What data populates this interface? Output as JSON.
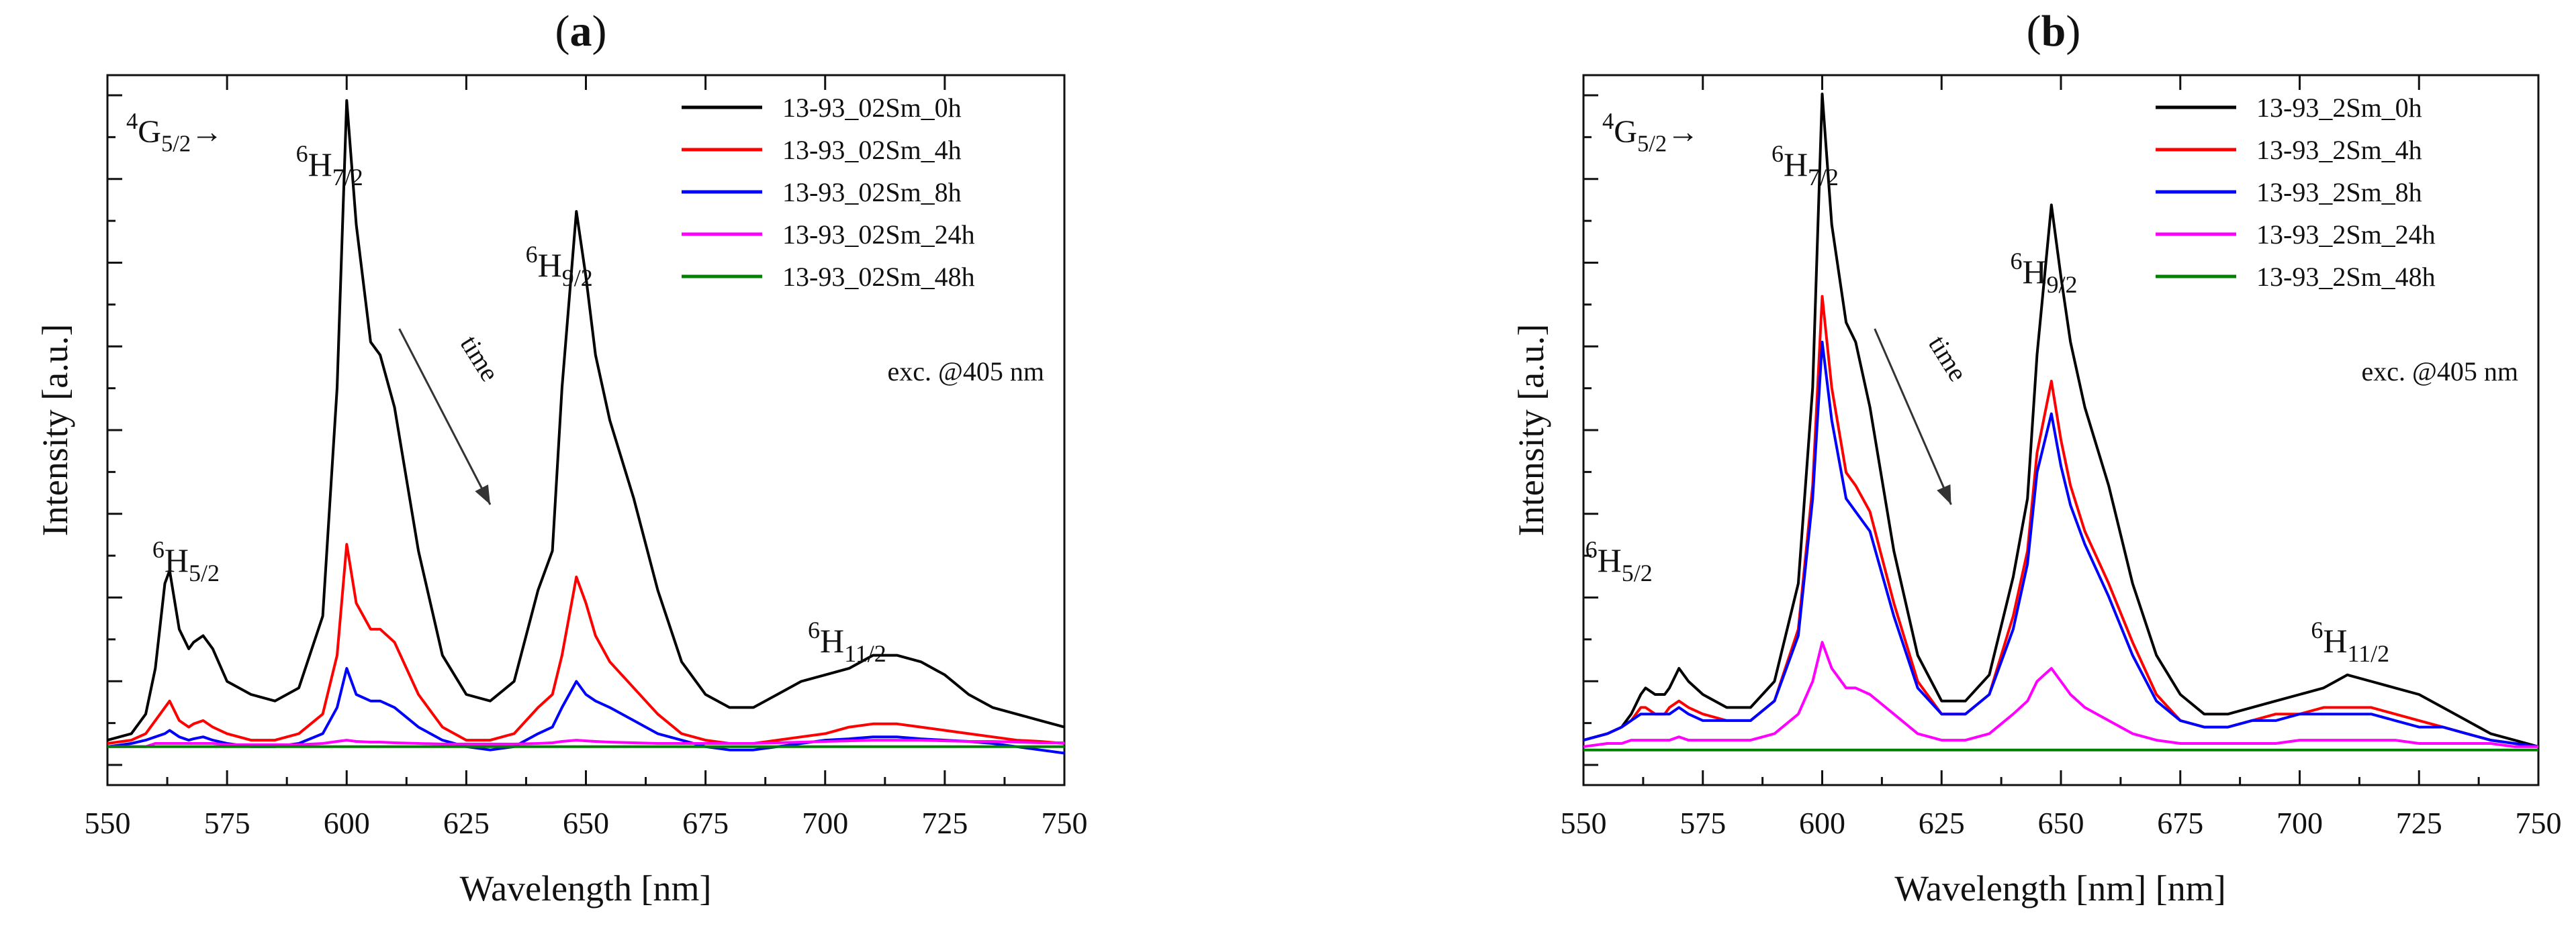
{
  "panels": [
    {
      "panel_label": "a",
      "transition_prefix": "→",
      "transition_prefix_parts": {
        "sup": "4",
        "main": "G",
        "sub": "5/2"
      },
      "arrow_label": "time",
      "excitation_note": "exc. @405 nm",
      "peak_labels": [
        {
          "sup": "6",
          "main": "H",
          "sub": "5/2"
        },
        {
          "sup": "6",
          "main": "H",
          "sub": "7/2"
        },
        {
          "sup": "6",
          "main": "H",
          "sub": "9/2"
        },
        {
          "sup": "6",
          "main": "H",
          "sub": "11/2"
        }
      ]
    },
    {
      "panel_label": "b",
      "transition_prefix": "→",
      "transition_prefix_parts": {
        "sup": "4",
        "main": "G",
        "sub": "5/2"
      },
      "arrow_label": "time",
      "excitation_note": "exc. @405 nm",
      "peak_labels": [
        {
          "sup": "6",
          "main": "H",
          "sub": "5/2"
        },
        {
          "sup": "6",
          "main": "H",
          "sub": "7/2"
        },
        {
          "sup": "6",
          "main": "H",
          "sub": "9/2"
        },
        {
          "sup": "6",
          "main": "H",
          "sub": "11/2"
        }
      ]
    }
  ],
  "chart_data": [
    {
      "type": "line",
      "title": "(a)",
      "xlabel": "Wavelength [nm]",
      "ylabel": "Intensity [a.u.]",
      "xlim": [
        550,
        750
      ],
      "ylim": [
        0,
        1.0
      ],
      "x_ticks": [
        "550",
        "575",
        "600",
        "625",
        "650",
        "675",
        "700",
        "725",
        "750"
      ],
      "y_tick_labels": false,
      "legend_position": "top-right",
      "x": [
        550,
        555,
        558,
        560,
        562,
        563,
        565,
        567,
        568,
        570,
        572,
        575,
        580,
        585,
        590,
        595,
        598,
        600,
        602,
        605,
        607,
        610,
        615,
        620,
        625,
        630,
        635,
        640,
        643,
        645,
        648,
        650,
        652,
        655,
        660,
        665,
        670,
        675,
        680,
        685,
        690,
        695,
        700,
        705,
        710,
        715,
        720,
        725,
        730,
        735,
        740,
        745,
        750
      ],
      "series": [
        {
          "name": "13-93_02Sm_0h",
          "color": "#000000",
          "values": [
            0.01,
            0.02,
            0.05,
            0.12,
            0.25,
            0.27,
            0.18,
            0.15,
            0.16,
            0.17,
            0.15,
            0.1,
            0.08,
            0.07,
            0.09,
            0.2,
            0.55,
            0.99,
            0.8,
            0.62,
            0.6,
            0.52,
            0.3,
            0.14,
            0.08,
            0.07,
            0.1,
            0.24,
            0.3,
            0.55,
            0.82,
            0.72,
            0.6,
            0.5,
            0.38,
            0.24,
            0.13,
            0.08,
            0.06,
            0.06,
            0.08,
            0.1,
            0.11,
            0.12,
            0.14,
            0.14,
            0.13,
            0.11,
            0.08,
            0.06,
            0.05,
            0.04,
            0.03
          ]
        },
        {
          "name": "13-93_02Sm_4h",
          "color": "#ff0000",
          "values": [
            0.005,
            0.01,
            0.02,
            0.04,
            0.06,
            0.07,
            0.04,
            0.03,
            0.035,
            0.04,
            0.03,
            0.02,
            0.01,
            0.01,
            0.02,
            0.05,
            0.14,
            0.31,
            0.22,
            0.18,
            0.18,
            0.16,
            0.08,
            0.03,
            0.01,
            0.01,
            0.02,
            0.06,
            0.08,
            0.14,
            0.26,
            0.22,
            0.17,
            0.13,
            0.09,
            0.05,
            0.02,
            0.01,
            0.005,
            0.005,
            0.01,
            0.015,
            0.02,
            0.03,
            0.035,
            0.035,
            0.03,
            0.025,
            0.02,
            0.015,
            0.01,
            0.008,
            0.005
          ]
        },
        {
          "name": "13-93_02Sm_8h",
          "color": "#0000ff",
          "values": [
            0.0,
            0.005,
            0.01,
            0.015,
            0.02,
            0.025,
            0.015,
            0.01,
            0.012,
            0.015,
            0.01,
            0.005,
            0.0,
            0.0,
            0.005,
            0.02,
            0.06,
            0.12,
            0.08,
            0.07,
            0.07,
            0.06,
            0.03,
            0.01,
            0.0,
            -0.005,
            0.0,
            0.02,
            0.03,
            0.06,
            0.1,
            0.08,
            0.07,
            0.06,
            0.04,
            0.02,
            0.01,
            0.0,
            -0.005,
            -0.005,
            0.0,
            0.005,
            0.01,
            0.012,
            0.015,
            0.015,
            0.012,
            0.01,
            0.008,
            0.005,
            0.0,
            -0.005,
            -0.01
          ]
        },
        {
          "name": "13-93_02Sm_24h",
          "color": "#ff00ff",
          "values": [
            0.0,
            0.0,
            0.0,
            0.005,
            0.005,
            0.005,
            0.005,
            0.005,
            0.005,
            0.005,
            0.005,
            0.003,
            0.003,
            0.003,
            0.003,
            0.005,
            0.008,
            0.01,
            0.008,
            0.007,
            0.007,
            0.006,
            0.005,
            0.004,
            0.004,
            0.004,
            0.004,
            0.005,
            0.006,
            0.008,
            0.01,
            0.009,
            0.008,
            0.007,
            0.006,
            0.005,
            0.005,
            0.005,
            0.005,
            0.005,
            0.006,
            0.007,
            0.008,
            0.009,
            0.01,
            0.01,
            0.01,
            0.009,
            0.008,
            0.008,
            0.007,
            0.006,
            0.006
          ]
        },
        {
          "name": "13-93_02Sm_48h",
          "color": "#008000",
          "values": [
            0.0,
            0.0,
            0.0,
            0.0,
            0.0,
            0.0,
            0.0,
            0.0,
            0.0,
            0.0,
            0.0,
            0.0,
            0.0,
            0.0,
            0.0,
            0.0,
            0.0,
            0.0,
            0.0,
            0.0,
            0.0,
            0.0,
            0.0,
            0.0,
            0.0,
            0.0,
            0.0,
            0.0,
            0.0,
            0.0,
            0.0,
            0.0,
            0.0,
            0.0,
            0.0,
            0.0,
            0.0,
            0.0,
            0.0,
            0.0,
            0.0,
            0.0,
            0.0,
            0.0,
            0.0,
            0.0,
            0.0,
            0.0,
            0.0,
            0.0,
            0.0,
            0.0,
            0.0
          ]
        }
      ]
    },
    {
      "type": "line",
      "title": "(b)",
      "xlabel": "Wavelength [nm] [nm]",
      "ylabel": "Intensity [a.u.]",
      "xlim": [
        550,
        750
      ],
      "ylim": [
        0,
        1.0
      ],
      "x_ticks": [
        "550",
        "575",
        "600",
        "625",
        "650",
        "675",
        "700",
        "725",
        "750"
      ],
      "y_tick_labels": false,
      "legend_position": "top-right",
      "x": [
        550,
        555,
        558,
        560,
        562,
        563,
        565,
        567,
        568,
        570,
        572,
        575,
        580,
        585,
        590,
        595,
        598,
        600,
        602,
        605,
        607,
        610,
        615,
        620,
        625,
        630,
        635,
        640,
        643,
        645,
        648,
        650,
        652,
        655,
        660,
        665,
        670,
        675,
        680,
        685,
        690,
        695,
        700,
        705,
        710,
        715,
        720,
        725,
        730,
        735,
        740,
        745,
        750
      ],
      "series": [
        {
          "name": "13-93_2Sm_0h",
          "color": "#000000",
          "values": [
            0.01,
            0.02,
            0.03,
            0.05,
            0.08,
            0.09,
            0.08,
            0.08,
            0.09,
            0.12,
            0.1,
            0.08,
            0.06,
            0.06,
            0.1,
            0.25,
            0.55,
            1.0,
            0.8,
            0.65,
            0.62,
            0.52,
            0.3,
            0.14,
            0.07,
            0.07,
            0.11,
            0.26,
            0.38,
            0.6,
            0.83,
            0.72,
            0.62,
            0.52,
            0.4,
            0.25,
            0.14,
            0.08,
            0.05,
            0.05,
            0.06,
            0.07,
            0.08,
            0.09,
            0.11,
            0.1,
            0.09,
            0.08,
            0.06,
            0.04,
            0.02,
            0.01,
            0.0
          ]
        },
        {
          "name": "13-93_2Sm_4h",
          "color": "#ff0000",
          "values": [
            0.01,
            0.02,
            0.03,
            0.04,
            0.06,
            0.06,
            0.05,
            0.05,
            0.06,
            0.07,
            0.06,
            0.05,
            0.04,
            0.04,
            0.07,
            0.18,
            0.4,
            0.69,
            0.55,
            0.42,
            0.4,
            0.36,
            0.22,
            0.1,
            0.05,
            0.05,
            0.08,
            0.2,
            0.3,
            0.45,
            0.56,
            0.47,
            0.4,
            0.33,
            0.25,
            0.16,
            0.08,
            0.04,
            0.03,
            0.03,
            0.04,
            0.05,
            0.05,
            0.06,
            0.06,
            0.06,
            0.05,
            0.04,
            0.03,
            0.02,
            0.01,
            0.005,
            0.0
          ]
        },
        {
          "name": "13-93_2Sm_8h",
          "color": "#0000ff",
          "values": [
            0.01,
            0.02,
            0.03,
            0.04,
            0.05,
            0.05,
            0.05,
            0.05,
            0.05,
            0.06,
            0.05,
            0.04,
            0.04,
            0.04,
            0.07,
            0.17,
            0.38,
            0.62,
            0.5,
            0.38,
            0.36,
            0.33,
            0.2,
            0.09,
            0.05,
            0.05,
            0.08,
            0.18,
            0.28,
            0.42,
            0.51,
            0.43,
            0.37,
            0.31,
            0.23,
            0.14,
            0.07,
            0.04,
            0.03,
            0.03,
            0.04,
            0.04,
            0.05,
            0.05,
            0.05,
            0.05,
            0.04,
            0.03,
            0.03,
            0.02,
            0.01,
            0.005,
            0.0
          ]
        },
        {
          "name": "13-93_2Sm_24h",
          "color": "#ff00ff",
          "values": [
            0.0,
            0.005,
            0.005,
            0.01,
            0.01,
            0.01,
            0.01,
            0.01,
            0.01,
            0.015,
            0.01,
            0.01,
            0.01,
            0.01,
            0.02,
            0.05,
            0.1,
            0.16,
            0.12,
            0.09,
            0.09,
            0.08,
            0.05,
            0.02,
            0.01,
            0.01,
            0.02,
            0.05,
            0.07,
            0.1,
            0.12,
            0.1,
            0.08,
            0.06,
            0.04,
            0.02,
            0.01,
            0.005,
            0.005,
            0.005,
            0.005,
            0.005,
            0.01,
            0.01,
            0.01,
            0.01,
            0.01,
            0.005,
            0.005,
            0.005,
            0.005,
            0.0,
            0.0
          ]
        },
        {
          "name": "13-93_2Sm_48h",
          "color": "#008000",
          "values": [
            -0.005,
            -0.005,
            -0.005,
            -0.005,
            -0.005,
            -0.005,
            -0.005,
            -0.005,
            -0.005,
            -0.005,
            -0.005,
            -0.005,
            -0.005,
            -0.005,
            -0.005,
            -0.005,
            -0.005,
            -0.005,
            -0.005,
            -0.005,
            -0.005,
            -0.005,
            -0.005,
            -0.005,
            -0.005,
            -0.005,
            -0.005,
            -0.005,
            -0.005,
            -0.005,
            -0.005,
            -0.005,
            -0.005,
            -0.005,
            -0.005,
            -0.005,
            -0.005,
            -0.005,
            -0.005,
            -0.005,
            -0.005,
            -0.005,
            -0.005,
            -0.005,
            -0.005,
            -0.005,
            -0.005,
            -0.005,
            -0.005,
            -0.005,
            -0.005,
            -0.005,
            -0.005
          ]
        }
      ]
    }
  ]
}
